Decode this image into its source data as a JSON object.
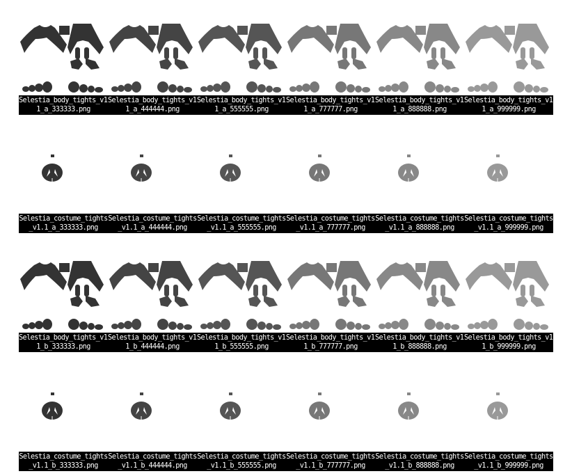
{
  "rows": [
    {
      "type": "body",
      "files": [
        {
          "filename": "Selestia_body_tights_v1.1_a_333333.png",
          "color": "#333333"
        },
        {
          "filename": "Selestia_body_tights_v1.1_a_444444.png",
          "color": "#444444"
        },
        {
          "filename": "Selestia_body_tights_v1.1_a_555555.png",
          "color": "#555555"
        },
        {
          "filename": "Selestia_body_tights_v1.1_a_777777.png",
          "color": "#777777"
        },
        {
          "filename": "Selestia_body_tights_v1.1_a_888888.png",
          "color": "#888888"
        },
        {
          "filename": "Selestia_body_tights_v1.1_a_999999.png",
          "color": "#999999"
        }
      ]
    },
    {
      "type": "costume",
      "files": [
        {
          "filename": "Selestia_costume_tights_v1.1_a_333333.png",
          "color": "#333333"
        },
        {
          "filename": "Selestia_costume_tights_v1.1_a_444444.png",
          "color": "#444444"
        },
        {
          "filename": "Selestia_costume_tights_v1.1_a_555555.png",
          "color": "#555555"
        },
        {
          "filename": "Selestia_costume_tights_v1.1_a_777777.png",
          "color": "#777777"
        },
        {
          "filename": "Selestia_costume_tights_v1.1_a_888888.png",
          "color": "#888888"
        },
        {
          "filename": "Selestia_costume_tights_v1.1_a_999999.png",
          "color": "#999999"
        }
      ]
    },
    {
      "type": "body",
      "files": [
        {
          "filename": "Selestia_body_tights_v1.1_b_333333.png",
          "color": "#333333"
        },
        {
          "filename": "Selestia_body_tights_v1.1_b_444444.png",
          "color": "#444444"
        },
        {
          "filename": "Selestia_body_tights_v1.1_b_555555.png",
          "color": "#555555"
        },
        {
          "filename": "Selestia_body_tights_v1.1_b_777777.png",
          "color": "#777777"
        },
        {
          "filename": "Selestia_body_tights_v1.1_b_888888.png",
          "color": "#888888"
        },
        {
          "filename": "Selestia_body_tights_v1.1_b_999999.png",
          "color": "#999999"
        }
      ]
    },
    {
      "type": "costume",
      "files": [
        {
          "filename": "Selestia_costume_tights_v1.1_b_333333.png",
          "color": "#333333"
        },
        {
          "filename": "Selestia_costume_tights_v1.1_b_444444.png",
          "color": "#444444"
        },
        {
          "filename": "Selestia_costume_tights_v1.1_b_555555.png",
          "color": "#555555"
        },
        {
          "filename": "Selestia_costume_tights_v1.1_b_777777.png",
          "color": "#777777"
        },
        {
          "filename": "Selestia_costume_tights_v1.1_b_888888.png",
          "color": "#888888"
        },
        {
          "filename": "Selestia_costume_tights_v1.1_b_999999.png",
          "color": "#999999"
        }
      ]
    }
  ]
}
